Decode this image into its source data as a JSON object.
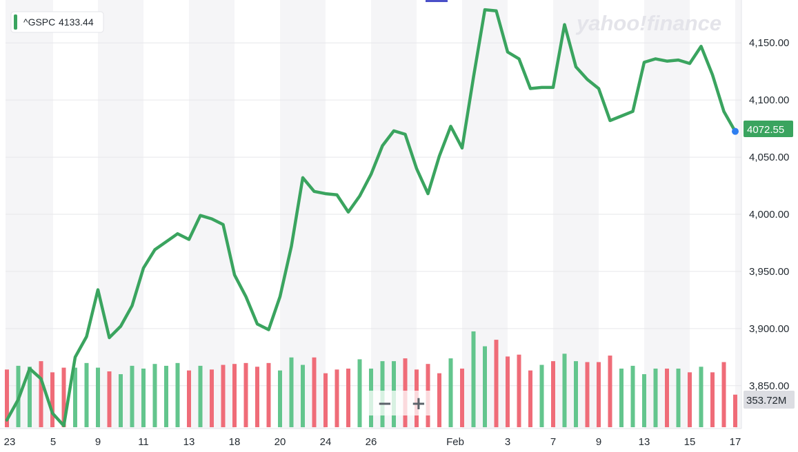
{
  "legend": {
    "symbol": "^GSPC",
    "value": "4133.44"
  },
  "watermark": "yahoo!finance",
  "zoom": {
    "minus": "−",
    "plus": "+"
  },
  "colors": {
    "line": "#3aa45f",
    "up": "#63c58d",
    "down": "#ef6c78",
    "last_dot": "#2e7ef0",
    "band": "#f5f5f7"
  },
  "chart_data": {
    "type": "line",
    "title": "",
    "ylabel": "",
    "xlabel": "",
    "ylim": [
      3812.5,
      4187.5
    ],
    "y_ticks": [
      "3,850.00",
      "3,900.00",
      "3,950.00",
      "4,000.00",
      "4,050.00",
      "4,100.00",
      "4,150.00"
    ],
    "x_ticks": [
      "23",
      "5",
      "9",
      "11",
      "13",
      "18",
      "20",
      "24",
      "26",
      "Feb",
      "3",
      "7",
      "9",
      "13",
      "15",
      "17"
    ],
    "last_price_label": "4072.55",
    "volume_label": "353.72M",
    "series": [
      {
        "name": "^GSPC",
        "values": [
          3820,
          3838,
          3865,
          3856,
          3826,
          3815,
          3875,
          3893,
          3934,
          3892,
          3902,
          3920,
          3953,
          3969,
          3976,
          3983,
          3978,
          3999,
          3996,
          3991,
          3947,
          3928,
          3904,
          3899,
          3928,
          3972,
          4032,
          4020,
          4018,
          4017,
          4002,
          4016,
          4035,
          4060,
          4073,
          4070,
          4040,
          4018,
          4051,
          4077,
          4058,
          4120,
          4179,
          4178,
          4142,
          4136,
          4110,
          4111,
          4111,
          4166,
          4129,
          4118,
          4110,
          4082,
          4086,
          4090,
          4133,
          4136,
          4134,
          4135,
          4132,
          4147,
          4122,
          4090,
          4072.55
        ]
      }
    ],
    "volume": [
      {
        "value": 62,
        "dir": "down"
      },
      {
        "value": 66,
        "dir": "up"
      },
      {
        "value": 65,
        "dir": "up"
      },
      {
        "value": 71,
        "dir": "down"
      },
      {
        "value": 59,
        "dir": "down"
      },
      {
        "value": 64,
        "dir": "down"
      },
      {
        "value": 64,
        "dir": "up"
      },
      {
        "value": 69,
        "dir": "up"
      },
      {
        "value": 64,
        "dir": "up"
      },
      {
        "value": 60,
        "dir": "down"
      },
      {
        "value": 57,
        "dir": "up"
      },
      {
        "value": 66,
        "dir": "up"
      },
      {
        "value": 63,
        "dir": "up"
      },
      {
        "value": 68,
        "dir": "up"
      },
      {
        "value": 66,
        "dir": "up"
      },
      {
        "value": 69,
        "dir": "up"
      },
      {
        "value": 61,
        "dir": "down"
      },
      {
        "value": 66,
        "dir": "up"
      },
      {
        "value": 62,
        "dir": "down"
      },
      {
        "value": 67,
        "dir": "down"
      },
      {
        "value": 68,
        "dir": "down"
      },
      {
        "value": 69,
        "dir": "down"
      },
      {
        "value": 65,
        "dir": "down"
      },
      {
        "value": 69,
        "dir": "down"
      },
      {
        "value": 61,
        "dir": "up"
      },
      {
        "value": 75,
        "dir": "up"
      },
      {
        "value": 67,
        "dir": "up"
      },
      {
        "value": 75,
        "dir": "down"
      },
      {
        "value": 58,
        "dir": "down"
      },
      {
        "value": 62,
        "dir": "down"
      },
      {
        "value": 63,
        "dir": "down"
      },
      {
        "value": 73,
        "dir": "up"
      },
      {
        "value": 63,
        "dir": "up"
      },
      {
        "value": 71,
        "dir": "up"
      },
      {
        "value": 71,
        "dir": "up"
      },
      {
        "value": 74,
        "dir": "down"
      },
      {
        "value": 62,
        "dir": "down"
      },
      {
        "value": 68,
        "dir": "down"
      },
      {
        "value": 58,
        "dir": "down"
      },
      {
        "value": 74,
        "dir": "up"
      },
      {
        "value": 63,
        "dir": "down"
      },
      {
        "value": 103,
        "dir": "up"
      },
      {
        "value": 87,
        "dir": "up"
      },
      {
        "value": 94,
        "dir": "down"
      },
      {
        "value": 76,
        "dir": "down"
      },
      {
        "value": 78,
        "dir": "down"
      },
      {
        "value": 61,
        "dir": "down"
      },
      {
        "value": 67,
        "dir": "up"
      },
      {
        "value": 71,
        "dir": "down"
      },
      {
        "value": 79,
        "dir": "up"
      },
      {
        "value": 71,
        "dir": "up"
      },
      {
        "value": 70,
        "dir": "down"
      },
      {
        "value": 70,
        "dir": "down"
      },
      {
        "value": 77,
        "dir": "down"
      },
      {
        "value": 63,
        "dir": "up"
      },
      {
        "value": 66,
        "dir": "up"
      },
      {
        "value": 57,
        "dir": "up"
      },
      {
        "value": 63,
        "dir": "up"
      },
      {
        "value": 63,
        "dir": "down"
      },
      {
        "value": 63,
        "dir": "up"
      },
      {
        "value": 59,
        "dir": "down"
      },
      {
        "value": 65,
        "dir": "up"
      },
      {
        "value": 59,
        "dir": "down"
      },
      {
        "value": 70,
        "dir": "down"
      },
      {
        "value": 35,
        "dir": "down"
      }
    ]
  }
}
